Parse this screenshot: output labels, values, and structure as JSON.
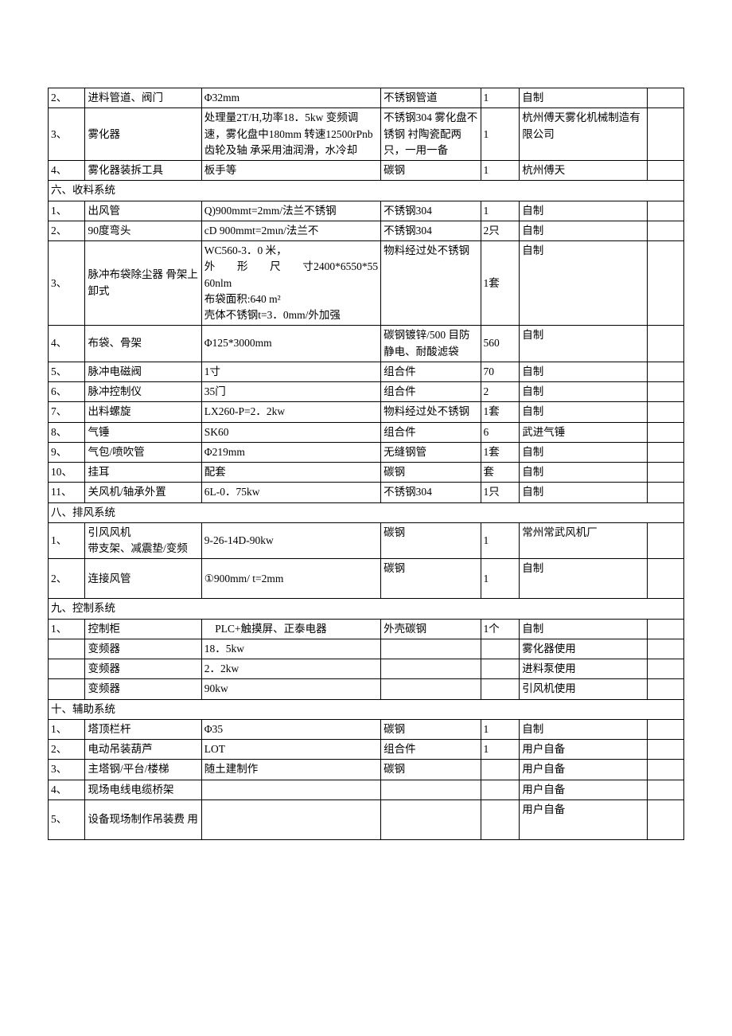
{
  "table": {
    "columns": [
      "idx",
      "name",
      "spec",
      "material",
      "qty",
      "source",
      "remark"
    ],
    "col_widths": [
      "40px",
      "126px",
      "194px",
      "108px",
      "42px",
      "138px",
      "40px"
    ],
    "border_color": "#000000",
    "background_color": "#ffffff",
    "font_size": 13.5,
    "rows": [
      {
        "type": "row",
        "cells": [
          "2、",
          "进料管道、阀门",
          "Φ32mm",
          "不锈钢管道",
          "1",
          "自制",
          ""
        ]
      },
      {
        "type": "row",
        "cells": [
          "3、",
          "雾化器",
          "处理量2T/H,功率18．5kw 变频调速，雾化盘中180mm 转速12500rPnb齿轮及轴 承采用油润滑，水冷却",
          "不锈钢304 雾化盘不锈钢 衬陶瓷配两 只，一用一备",
          "1",
          "杭州傅天雾化机械制造有限公司",
          ""
        ]
      },
      {
        "type": "row",
        "cells": [
          "4、",
          "雾化器装拆工具",
          "板手等",
          "碳钢",
          "1",
          "杭州傅天",
          ""
        ]
      },
      {
        "type": "section",
        "label": "六、收料系统"
      },
      {
        "type": "row",
        "cells": [
          "1、",
          "出风管",
          "Q)900mmt=2mm/法兰不锈钢",
          "不锈钢304",
          "1",
          "自制",
          ""
        ]
      },
      {
        "type": "row",
        "cells": [
          "2、",
          "90度弯头",
          "cD 900mmt=2mιn/法兰不",
          "不锈钢304",
          "2只",
          "自制",
          ""
        ]
      },
      {
        "type": "row",
        "cells": [
          "3、",
          "脉冲布袋除尘器 骨架上卸式",
          "WC560-3．0 米，\n外　　形　　尺　　寸2400*6550*5560nlm\n布袋面积:640 m²\n壳体不锈钢t=3．0mm/外加强",
          "物料经过处不锈钢",
          "1套",
          "自制",
          ""
        ],
        "spec_just": true
      },
      {
        "type": "row",
        "cells": [
          "4、",
          "布袋、骨架",
          "Φ125*3000mm",
          "碳钢镀锌/500 目防静电、耐酸滤袋",
          "560",
          "自制",
          ""
        ]
      },
      {
        "type": "row",
        "cells": [
          "5、",
          "脉冲电磁阀",
          "1寸",
          "组合件",
          "70",
          "自制",
          ""
        ]
      },
      {
        "type": "row",
        "cells": [
          "6、",
          "脉冲控制仪",
          "35门",
          "组合件",
          "2",
          "自制",
          ""
        ]
      },
      {
        "type": "row",
        "cells": [
          "7、",
          "出料螺旋",
          "LX260-P=2．2kw",
          "物料经过处不锈钢",
          "1套",
          "\n自制",
          ""
        ]
      },
      {
        "type": "row",
        "cells": [
          "8、",
          "气锤",
          "SK60",
          "组合件",
          "6",
          "武进气锤",
          ""
        ]
      },
      {
        "type": "row",
        "cells": [
          "9、",
          "气包/喷吹管",
          "Φ219mm",
          "无缝钢管",
          "1套",
          "自制",
          ""
        ]
      },
      {
        "type": "row",
        "cells": [
          "10、",
          "挂耳",
          "配套",
          "碳钢",
          "套",
          "自制",
          ""
        ]
      },
      {
        "type": "row",
        "cells": [
          "11、",
          "关风机/轴承外置",
          "6L-0．75kw",
          "不锈钢304",
          "1只",
          "自制",
          ""
        ]
      },
      {
        "type": "section",
        "label": "八、排风系统"
      },
      {
        "type": "row",
        "cells": [
          "1、",
          "引风风机\n带支架、减震垫/变频",
          "9-26-14D-90kw",
          "碳钢",
          "1",
          "\n常州常武风机厂",
          ""
        ]
      },
      {
        "type": "row",
        "cells": [
          "2、",
          "连接风管",
          "①900mm/ t=2mm",
          "碳钢",
          "1",
          "自制",
          ""
        ],
        "tall": true
      },
      {
        "type": "section",
        "label": "九、控制系统"
      },
      {
        "type": "row",
        "cells": [
          "1、",
          "控制柜",
          "　PLC+触摸屏、正泰电器",
          "外壳碳钢",
          "1个",
          "自制",
          ""
        ]
      },
      {
        "type": "row",
        "cells": [
          "",
          "变频器",
          "18．5kw",
          "",
          "",
          "雾化器使用",
          ""
        ]
      },
      {
        "type": "row",
        "cells": [
          "",
          "变频器",
          "2．2kw",
          "",
          "",
          "进料泵使用",
          ""
        ]
      },
      {
        "type": "row",
        "cells": [
          "",
          "变频器",
          "90kw",
          "",
          "",
          "引风机使用",
          ""
        ]
      },
      {
        "type": "section",
        "label": "十、辅助系统"
      },
      {
        "type": "row",
        "cells": [
          "1、",
          "塔顶栏杆",
          "Φ35",
          "碳钢",
          "1",
          "自制",
          ""
        ]
      },
      {
        "type": "row",
        "cells": [
          "2、",
          "电动吊装葫芦",
          "LOT",
          "组合件",
          "1",
          "用户自备",
          ""
        ]
      },
      {
        "type": "row",
        "cells": [
          "3、",
          "主塔钢/平台/楼梯",
          "随土建制作",
          "碳钢",
          "",
          "用户自备",
          ""
        ]
      },
      {
        "type": "row",
        "cells": [
          "4、",
          "现场电线电缆桥架",
          "",
          "",
          "",
          "用户自备",
          ""
        ]
      },
      {
        "type": "row",
        "cells": [
          "5、",
          "设备现场制作吊装费 用",
          "",
          "",
          "",
          "用户自备",
          ""
        ],
        "tall": true
      }
    ]
  }
}
